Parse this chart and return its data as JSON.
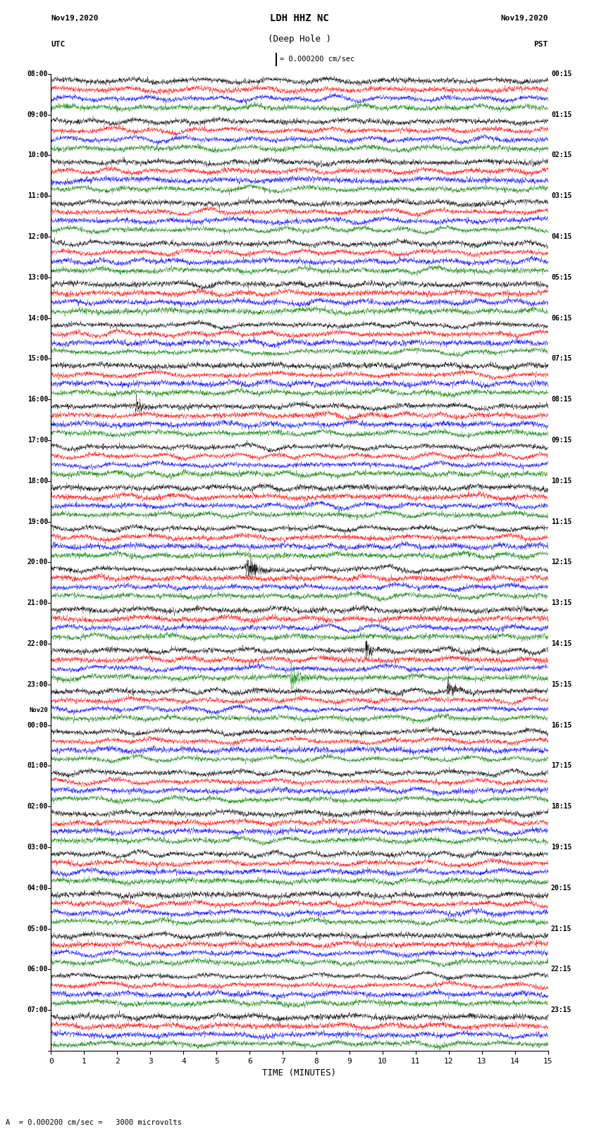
{
  "title_line1": "LDH HHZ NC",
  "title_line2": "(Deep Hole )",
  "scale_label": "= 0.000200 cm/sec",
  "bottom_label": "= 0.000200 cm/sec =   3000 microvolts",
  "xlabel": "TIME (MINUTES)",
  "left_times_utc": [
    "08:00",
    "09:00",
    "10:00",
    "11:00",
    "12:00",
    "13:00",
    "14:00",
    "15:00",
    "16:00",
    "17:00",
    "18:00",
    "19:00",
    "20:00",
    "21:00",
    "22:00",
    "23:00",
    "Nov20",
    "00:00",
    "01:00",
    "02:00",
    "03:00",
    "04:00",
    "05:00",
    "06:00",
    "07:00"
  ],
  "right_times_pst": [
    "00:15",
    "01:15",
    "02:15",
    "03:15",
    "04:15",
    "05:15",
    "06:15",
    "07:15",
    "08:15",
    "09:15",
    "10:15",
    "11:15",
    "12:15",
    "13:15",
    "14:15",
    "15:15",
    "16:15",
    "17:15",
    "18:15",
    "19:15",
    "20:15",
    "21:15",
    "22:15",
    "23:15"
  ],
  "colors": [
    "black",
    "red",
    "blue",
    "green"
  ],
  "n_rows": 24,
  "n_channels": 4,
  "x_min": 0,
  "x_max": 15,
  "x_ticks": [
    0,
    1,
    2,
    3,
    4,
    5,
    6,
    7,
    8,
    9,
    10,
    11,
    12,
    13,
    14,
    15
  ],
  "fig_width": 8.5,
  "fig_height": 16.13,
  "bg_color": "white"
}
